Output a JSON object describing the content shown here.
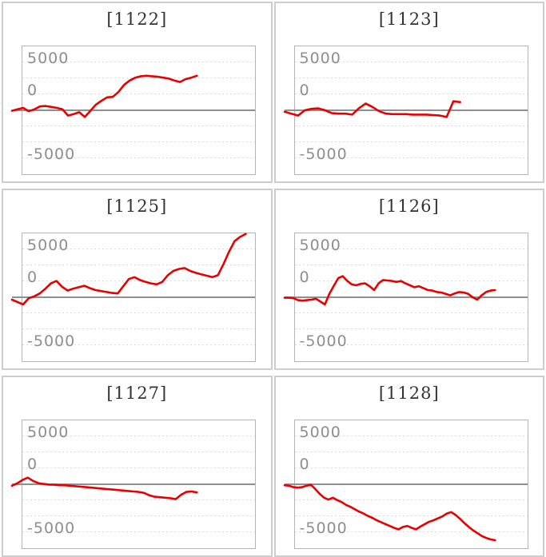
{
  "page": {
    "background": "#ffffff",
    "description": "Grid of six per-machine payout difference line graphs"
  },
  "colors": {
    "line": "#e80000",
    "zero_line": "#8f8f8f",
    "grid": "#dcdcdc",
    "plot_border": "#b5b5b5",
    "panel_border": "#cdcdcd",
    "tick_label": "#8e8e8e",
    "title": "#333333"
  },
  "axis": {
    "tick_labels": [
      "5000",
      "0",
      "-5000"
    ]
  },
  "chart_data": [
    {
      "type": "line",
      "title": "[1122]",
      "machine_number": "1122",
      "ylim": [
        -6667,
        6667
      ],
      "yticks": [
        5000,
        0,
        -5000
      ],
      "grid": "dotted horizontal lines every ~1667 units, solid line at 0",
      "legend": "none",
      "end_frac": 0.75,
      "values": [
        -50,
        100,
        250,
        -100,
        100,
        400,
        450,
        350,
        250,
        100,
        -550,
        -400,
        -200,
        -700,
        -50,
        600,
        1000,
        1350,
        1400,
        1900,
        2650,
        3100,
        3400,
        3550,
        3600,
        3550,
        3500,
        3400,
        3300,
        3100,
        2950,
        3250,
        3400,
        3600
      ]
    },
    {
      "type": "line",
      "title": "[1123]",
      "machine_number": "1123",
      "ylim": [
        -6667,
        6667
      ],
      "yticks": [
        5000,
        0,
        -5000
      ],
      "grid": "dotted horizontal lines every ~1667 units, solid line at 0",
      "legend": "none",
      "end_frac": 0.71,
      "values": [
        -150,
        -350,
        -550,
        0,
        150,
        200,
        0,
        -300,
        -350,
        -350,
        -450,
        200,
        700,
        350,
        -100,
        -350,
        -400,
        -400,
        -400,
        -450,
        -450,
        -450,
        -500,
        -550,
        -700,
        950,
        850
      ]
    },
    {
      "type": "line",
      "title": "[1125]",
      "machine_number": "1125",
      "ylim": [
        -6667,
        6667
      ],
      "yticks": [
        5000,
        0,
        -5000
      ],
      "grid": "dotted horizontal lines every ~1667 units, solid line at 0",
      "legend": "none",
      "end_frac": 0.96,
      "values": [
        -250,
        -500,
        -750,
        -100,
        100,
        400,
        900,
        1450,
        1700,
        1100,
        700,
        900,
        1050,
        1200,
        950,
        750,
        650,
        550,
        450,
        400,
        1150,
        1900,
        2100,
        1800,
        1600,
        1450,
        1350,
        1600,
        2300,
        2750,
        2950,
        3050,
        2750,
        2550,
        2400,
        2250,
        2100,
        2300,
        3450,
        4750,
        5850,
        6300,
        6600
      ]
    },
    {
      "type": "line",
      "title": "[1126]",
      "machine_number": "1126",
      "ylim": [
        -6667,
        6667
      ],
      "yticks": [
        5000,
        0,
        -5000
      ],
      "grid": "dotted horizontal lines every ~1667 units, solid line at 0",
      "legend": "none",
      "end_frac": 0.86,
      "values": [
        -50,
        -50,
        -100,
        -300,
        -350,
        -300,
        -250,
        -150,
        -450,
        -750,
        350,
        1200,
        2000,
        2200,
        1700,
        1350,
        1250,
        1400,
        1450,
        1150,
        750,
        1450,
        1800,
        1750,
        1700,
        1600,
        1700,
        1450,
        1250,
        1050,
        1150,
        950,
        750,
        700,
        550,
        500,
        350,
        200,
        400,
        550,
        500,
        350,
        0,
        -250,
        200,
        550,
        700,
        750
      ]
    },
    {
      "type": "line",
      "title": "[1127]",
      "machine_number": "1127",
      "ylim": [
        -6667,
        6667
      ],
      "yticks": [
        5000,
        0,
        -5000
      ],
      "grid": "dotted horizontal lines every ~1667 units, solid line at 0",
      "legend": "none",
      "end_frac": 0.75,
      "values": [
        -150,
        100,
        450,
        690,
        350,
        120,
        30,
        -30,
        -50,
        -100,
        -100,
        -150,
        -200,
        -250,
        -300,
        -350,
        -400,
        -450,
        -500,
        -550,
        -600,
        -650,
        -700,
        -750,
        -800,
        -900,
        -1150,
        -1300,
        -1350,
        -1400,
        -1450,
        -1550,
        -1100,
        -800,
        -750,
        -850
      ]
    },
    {
      "type": "line",
      "title": "[1128]",
      "machine_number": "1128",
      "ylim": [
        -6667,
        6667
      ],
      "yticks": [
        5000,
        0,
        -5000
      ],
      "grid": "dotted horizontal lines every ~1667 units, solid line at 0",
      "legend": "none",
      "end_frac": 0.86,
      "values": [
        -100,
        -150,
        -300,
        -350,
        -300,
        -150,
        -50,
        -500,
        -1000,
        -1400,
        -1600,
        -1400,
        -1650,
        -1850,
        -2150,
        -2350,
        -2600,
        -2850,
        -3050,
        -3300,
        -3500,
        -3750,
        -3950,
        -4150,
        -4350,
        -4550,
        -4700,
        -4450,
        -4350,
        -4550,
        -4700,
        -4400,
        -4150,
        -3900,
        -3750,
        -3550,
        -3350,
        -3050,
        -2900,
        -3200,
        -3600,
        -4050,
        -4450,
        -4800,
        -5100,
        -5400,
        -5600,
        -5750,
        -5830
      ]
    }
  ]
}
